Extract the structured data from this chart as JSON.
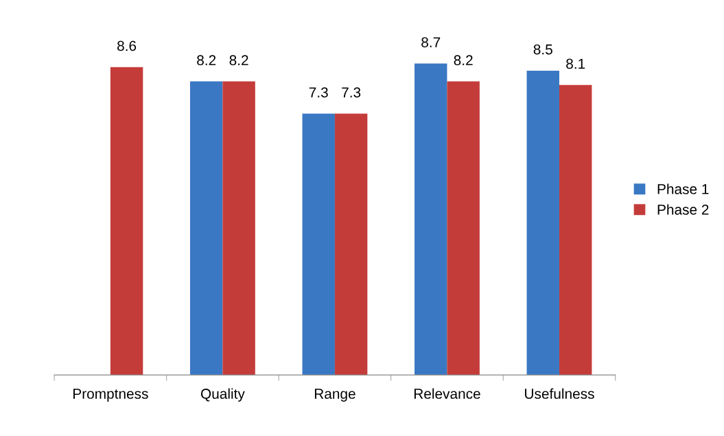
{
  "chart_data": {
    "type": "bar",
    "categories": [
      "Promptness",
      "Quality",
      "Range",
      "Relevance",
      "Usefulness"
    ],
    "series": [
      {
        "name": "Phase 1",
        "color": "#3a78c4",
        "values": [
          null,
          8.2,
          7.3,
          8.7,
          8.5
        ]
      },
      {
        "name": "Phase 2",
        "color": "#c43c3a",
        "values": [
          8.6,
          8.2,
          7.3,
          8.2,
          8.1
        ]
      }
    ],
    "data_labels": true,
    "legend": "right",
    "grid": false,
    "tick_labels": "x"
  }
}
